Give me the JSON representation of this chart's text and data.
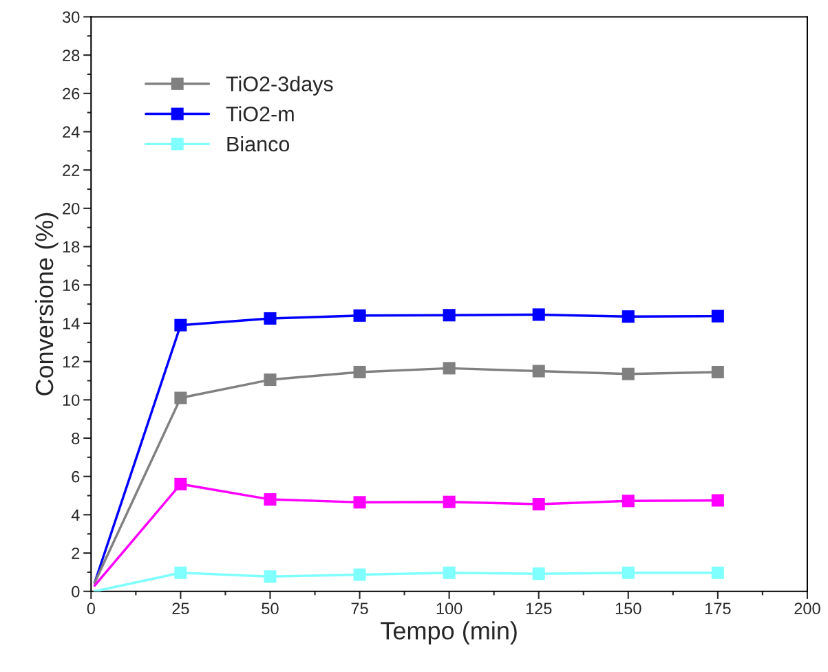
{
  "chart_data": {
    "type": "line",
    "xlabel": "Tempo (min)",
    "ylabel": "Conversione (%)",
    "xlim": [
      0,
      200
    ],
    "xticks": [
      0,
      25,
      50,
      75,
      100,
      125,
      150,
      175,
      200
    ],
    "ylim": [
      0,
      30
    ],
    "yticks": [
      0,
      2,
      4,
      6,
      8,
      10,
      12,
      14,
      16,
      18,
      20,
      22,
      24,
      26,
      28,
      30
    ],
    "x": [
      1,
      25,
      50,
      75,
      100,
      125,
      150,
      175
    ],
    "series": [
      {
        "color": "#ff00ff",
        "values": [
          0.3,
          5.6,
          4.8,
          4.65,
          4.67,
          4.55,
          4.72,
          4.75
        ]
      },
      {
        "name": "TiO2-3days",
        "color": "#808080",
        "values": [
          0.45,
          10.1,
          11.05,
          11.45,
          11.65,
          11.5,
          11.35,
          11.45
        ]
      },
      {
        "name": "TiO2-m",
        "color": "#0000ff",
        "values": [
          0.45,
          13.9,
          14.25,
          14.4,
          14.42,
          14.45,
          14.35,
          14.37
        ]
      },
      {
        "name": "Bianco",
        "color": "#80ffff",
        "values": [
          0.0,
          0.97,
          0.77,
          0.87,
          0.97,
          0.92,
          0.97,
          0.97
        ]
      }
    ],
    "marker": "square",
    "line_style": "solid",
    "legend": "top left",
    "grid": false
  }
}
